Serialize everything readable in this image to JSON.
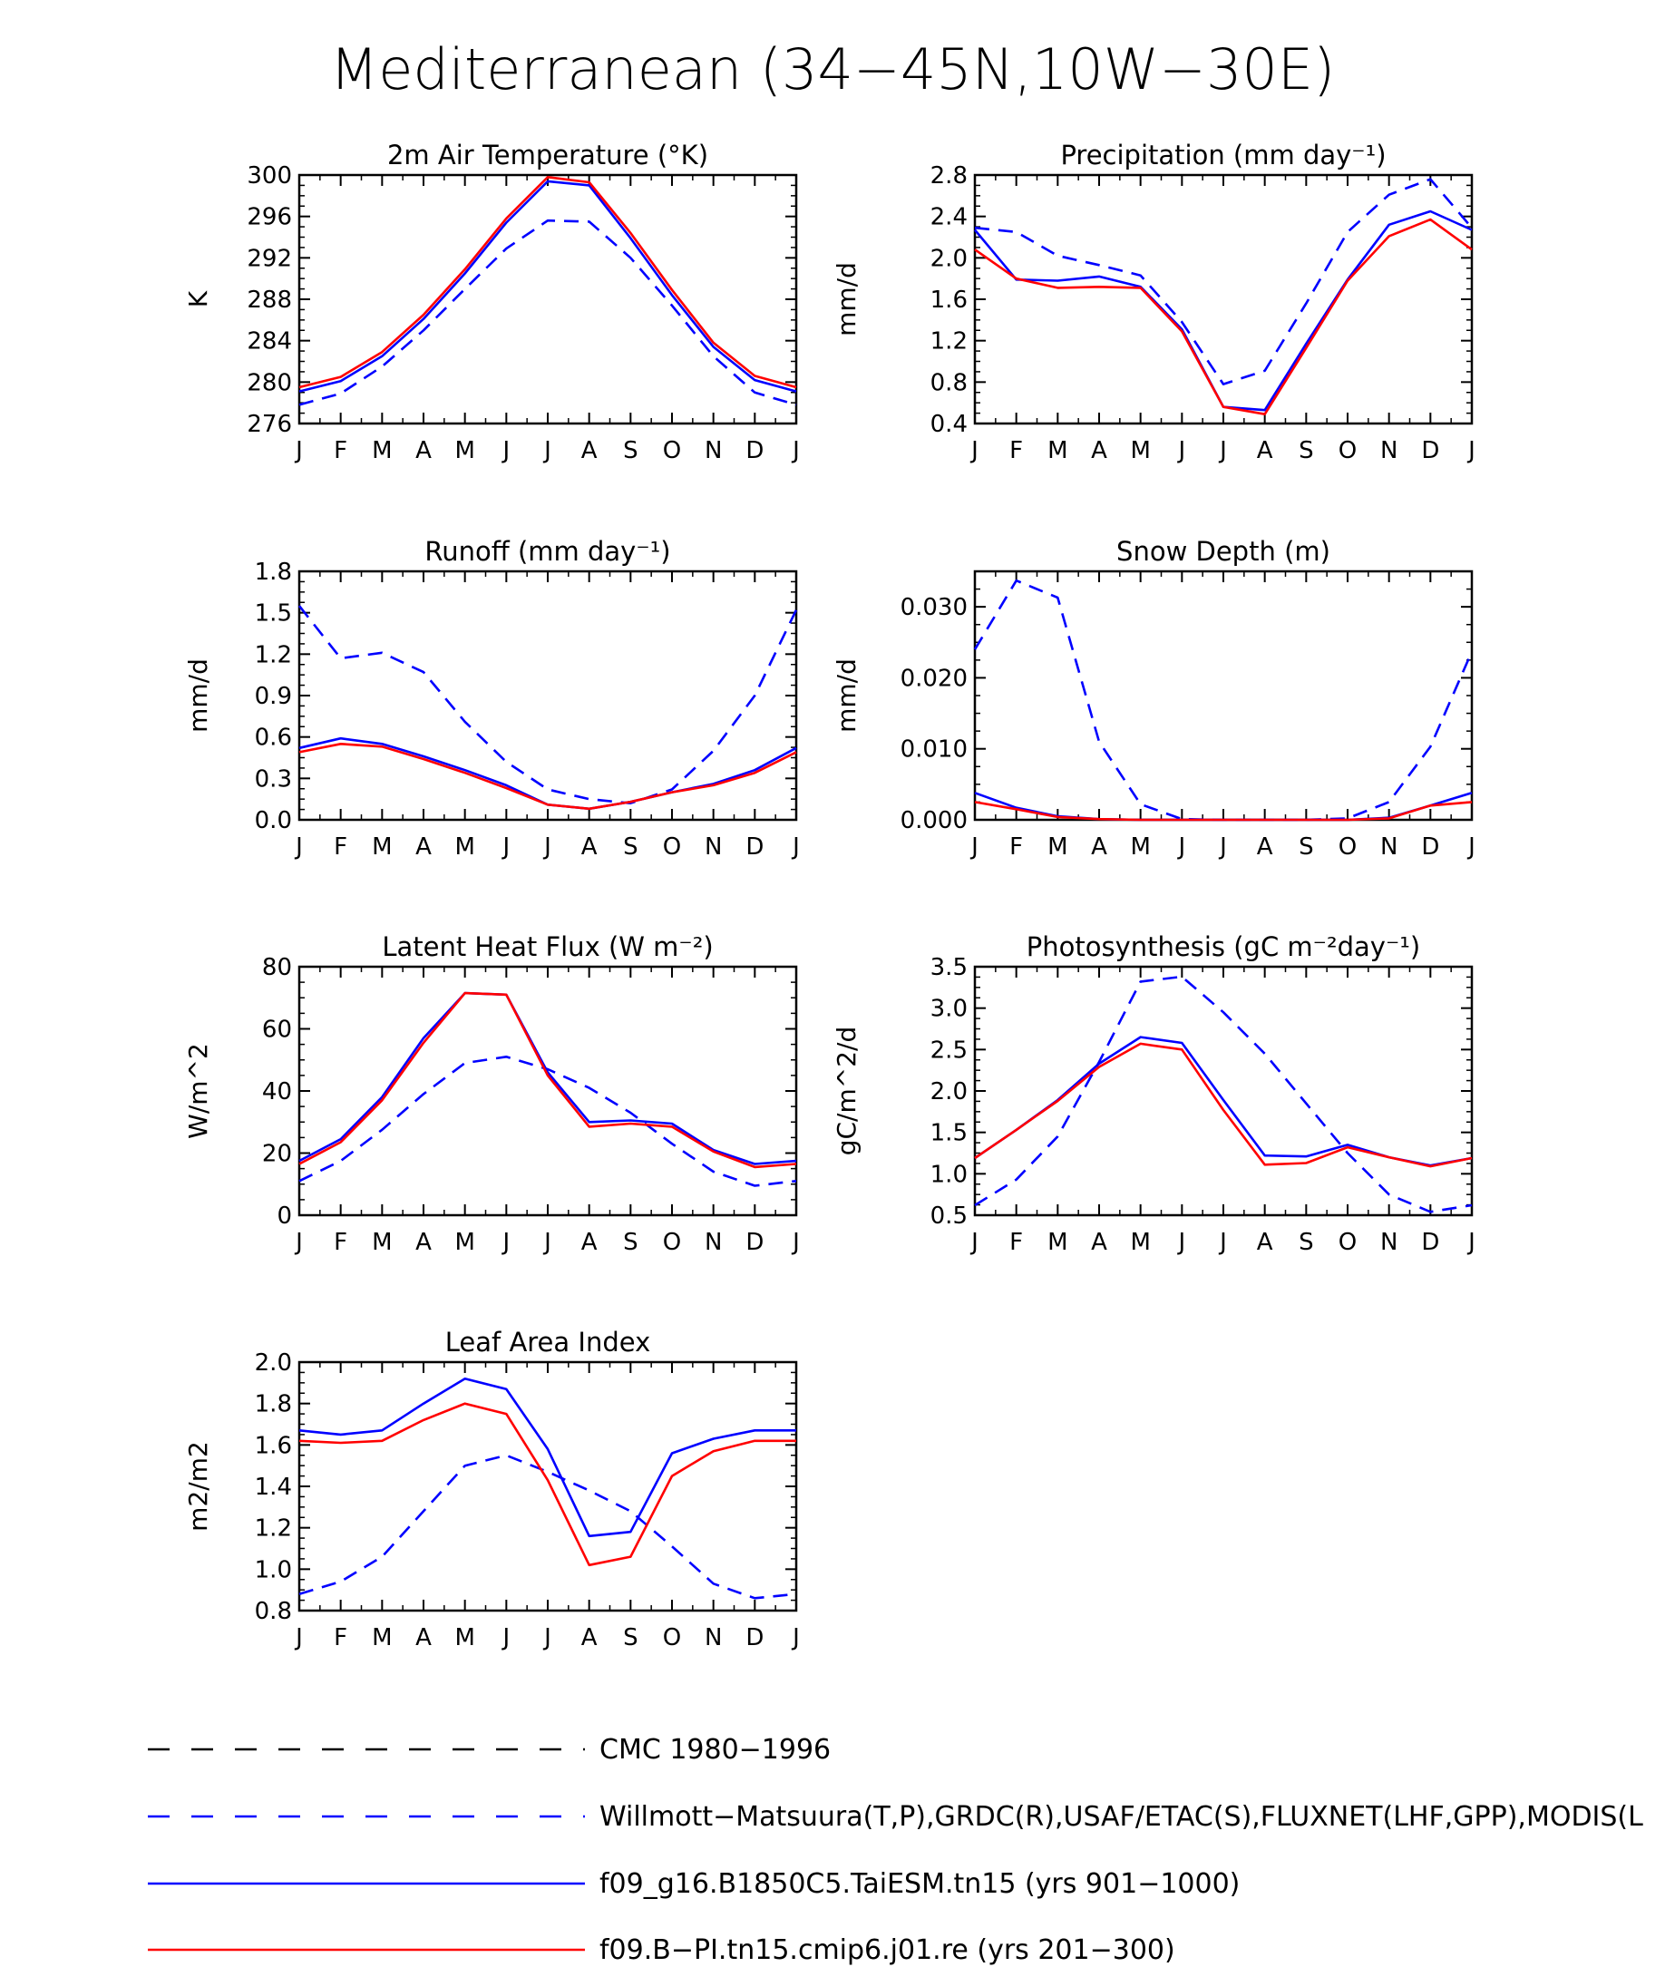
{
  "figure_title": "Mediterranean (34−45N,10W−30E)",
  "colors": {
    "obs_dashed": "#0000ff",
    "model_blue": "#0000ff",
    "model_red": "#ff0000",
    "reference_black": "#000000"
  },
  "chart_data": [
    {
      "type": "line",
      "title": "2m Air Temperature (°K)",
      "ylabel": "K",
      "categories": [
        "J",
        "F",
        "M",
        "A",
        "M",
        "J",
        "J",
        "A",
        "S",
        "O",
        "N",
        "D",
        "J"
      ],
      "ylim": [
        276,
        300
      ],
      "yticks": [
        "276",
        "280",
        "284",
        "288",
        "292",
        "296",
        "300"
      ],
      "series": [
        {
          "style": "dashed-blue",
          "values": [
            277.8,
            278.9,
            281.5,
            285.0,
            289.0,
            292.9,
            295.6,
            295.5,
            292.0,
            287.4,
            282.5,
            279.0,
            277.8
          ]
        },
        {
          "style": "solid-blue",
          "values": [
            279.1,
            280.1,
            282.5,
            286.1,
            290.5,
            295.4,
            299.4,
            299.0,
            293.9,
            288.4,
            283.4,
            280.2,
            279.1
          ]
        },
        {
          "style": "solid-red",
          "values": [
            279.5,
            280.5,
            282.9,
            286.5,
            290.9,
            295.8,
            299.8,
            299.3,
            294.4,
            288.9,
            283.8,
            280.6,
            279.5
          ]
        }
      ]
    },
    {
      "type": "line",
      "title": "Precipitation (mm day⁻¹)",
      "ylabel": "mm/d",
      "categories": [
        "J",
        "F",
        "M",
        "A",
        "M",
        "J",
        "J",
        "A",
        "S",
        "O",
        "N",
        "D",
        "J"
      ],
      "ylim": [
        0.4,
        2.8
      ],
      "yticks": [
        "0.4",
        "0.8",
        "1.2",
        "1.6",
        "2.0",
        "2.4",
        "2.8"
      ],
      "series": [
        {
          "style": "dashed-blue",
          "values": [
            2.29,
            2.25,
            2.02,
            1.93,
            1.83,
            1.38,
            0.78,
            0.91,
            1.56,
            2.25,
            2.61,
            2.76,
            2.29
          ]
        },
        {
          "style": "solid-blue",
          "values": [
            2.27,
            1.79,
            1.78,
            1.82,
            1.72,
            1.31,
            0.56,
            0.53,
            1.17,
            1.79,
            2.32,
            2.45,
            2.27
          ]
        },
        {
          "style": "solid-red",
          "values": [
            2.08,
            1.8,
            1.71,
            1.72,
            1.71,
            1.29,
            0.56,
            0.49,
            1.13,
            1.78,
            2.21,
            2.37,
            2.08
          ]
        }
      ]
    },
    {
      "type": "line",
      "title": "Runoff (mm day⁻¹)",
      "ylabel": "mm/d",
      "categories": [
        "J",
        "F",
        "M",
        "A",
        "M",
        "J",
        "J",
        "A",
        "S",
        "O",
        "N",
        "D",
        "J"
      ],
      "ylim": [
        0,
        1.8
      ],
      "yticks": [
        "0.0",
        "0.3",
        "0.6",
        "0.9",
        "1.2",
        "1.5",
        "1.8"
      ],
      "series": [
        {
          "style": "dashed-blue",
          "values": [
            1.55,
            1.17,
            1.21,
            1.07,
            0.71,
            0.42,
            0.22,
            0.15,
            0.12,
            0.22,
            0.5,
            0.9,
            1.52
          ]
        },
        {
          "style": "solid-blue",
          "values": [
            0.52,
            0.59,
            0.55,
            0.46,
            0.36,
            0.25,
            0.11,
            0.08,
            0.13,
            0.2,
            0.26,
            0.36,
            0.52
          ]
        },
        {
          "style": "solid-red",
          "values": [
            0.49,
            0.55,
            0.53,
            0.44,
            0.34,
            0.23,
            0.11,
            0.08,
            0.13,
            0.2,
            0.25,
            0.34,
            0.49
          ]
        }
      ]
    },
    {
      "type": "line",
      "title": "Snow Depth (m)",
      "ylabel": "mm/d",
      "categories": [
        "J",
        "F",
        "M",
        "A",
        "M",
        "J",
        "J",
        "A",
        "S",
        "O",
        "N",
        "D",
        "J"
      ],
      "ylim": [
        0,
        0.035
      ],
      "yticks": [
        "0.000",
        "0.010",
        "0.020",
        "0.030"
      ],
      "series": [
        {
          "style": "dashed-blue",
          "values": [
            0.024,
            0.0337,
            0.0313,
            0.011,
            0.0022,
            0.0001,
            0.0,
            0.0,
            0.0,
            0.0002,
            0.0025,
            0.0103,
            0.0237
          ]
        },
        {
          "style": "solid-blue",
          "values": [
            0.0038,
            0.0017,
            0.0005,
            0.0001,
            0.0,
            0.0,
            0.0,
            0.0,
            0.0,
            0.0,
            0.0003,
            0.002,
            0.0038
          ]
        },
        {
          "style": "solid-red",
          "values": [
            0.0025,
            0.0015,
            0.0004,
            0.0001,
            0.0,
            0.0,
            0.0,
            0.0,
            0.0,
            0.0,
            0.0002,
            0.002,
            0.0025
          ]
        }
      ]
    },
    {
      "type": "line",
      "title": "Latent Heat Flux (W m⁻²)",
      "ylabel": "W/m^2",
      "categories": [
        "J",
        "F",
        "M",
        "A",
        "M",
        "J",
        "J",
        "A",
        "S",
        "O",
        "N",
        "D",
        "J"
      ],
      "ylim": [
        0,
        80
      ],
      "yticks": [
        "0",
        "20",
        "40",
        "60",
        "80"
      ],
      "series": [
        {
          "style": "dashed-blue",
          "values": [
            11.0,
            17.5,
            27.5,
            39.0,
            49.0,
            51.0,
            47.0,
            41.0,
            33.0,
            23.0,
            14.0,
            9.5,
            11.0
          ]
        },
        {
          "style": "solid-blue",
          "values": [
            17.5,
            24.5,
            38.0,
            57.0,
            71.5,
            71.0,
            46.0,
            30.0,
            30.5,
            29.5,
            21.0,
            16.5,
            17.5
          ]
        },
        {
          "style": "solid-red",
          "values": [
            16.5,
            23.5,
            37.0,
            55.5,
            71.5,
            71.0,
            45.0,
            28.5,
            29.5,
            28.5,
            20.5,
            15.5,
            16.5
          ]
        }
      ]
    },
    {
      "type": "line",
      "title": "Photosynthesis (gC m⁻²day⁻¹)",
      "ylabel": "gC/m^2/d",
      "categories": [
        "J",
        "F",
        "M",
        "A",
        "M",
        "J",
        "J",
        "A",
        "S",
        "O",
        "N",
        "D",
        "J"
      ],
      "ylim": [
        0.5,
        3.5
      ],
      "yticks": [
        "0.5",
        "1.0",
        "1.5",
        "2.0",
        "2.5",
        "3.0",
        "3.5"
      ],
      "series": [
        {
          "style": "dashed-blue",
          "values": [
            0.62,
            0.93,
            1.45,
            2.35,
            3.32,
            3.38,
            2.95,
            2.45,
            1.85,
            1.25,
            0.75,
            0.54,
            0.62
          ]
        },
        {
          "style": "solid-blue",
          "values": [
            1.19,
            1.53,
            1.89,
            2.33,
            2.65,
            2.58,
            1.89,
            1.22,
            1.21,
            1.35,
            1.2,
            1.1,
            1.19
          ]
        },
        {
          "style": "solid-red",
          "values": [
            1.19,
            1.53,
            1.88,
            2.29,
            2.57,
            2.5,
            1.77,
            1.11,
            1.13,
            1.32,
            1.2,
            1.09,
            1.19
          ]
        }
      ]
    },
    {
      "type": "line",
      "title": "Leaf Area Index",
      "ylabel": "m2/m2",
      "categories": [
        "J",
        "F",
        "M",
        "A",
        "M",
        "J",
        "J",
        "A",
        "S",
        "O",
        "N",
        "D",
        "J"
      ],
      "ylim": [
        0.8,
        2.0
      ],
      "yticks": [
        "0.8",
        "1.0",
        "1.2",
        "1.4",
        "1.6",
        "1.8",
        "2.0"
      ],
      "series": [
        {
          "style": "dashed-blue",
          "values": [
            0.88,
            0.94,
            1.06,
            1.28,
            1.5,
            1.55,
            1.47,
            1.38,
            1.28,
            1.11,
            0.93,
            0.86,
            0.88
          ]
        },
        {
          "style": "solid-blue",
          "values": [
            1.67,
            1.65,
            1.67,
            1.8,
            1.92,
            1.87,
            1.58,
            1.16,
            1.18,
            1.56,
            1.63,
            1.67,
            1.67
          ]
        },
        {
          "style": "solid-red",
          "values": [
            1.62,
            1.61,
            1.62,
            1.72,
            1.8,
            1.75,
            1.43,
            1.02,
            1.06,
            1.45,
            1.57,
            1.62,
            1.62
          ]
        }
      ]
    }
  ],
  "legend": [
    {
      "label": "CMC 1980−1996",
      "style": "dashed-black"
    },
    {
      "label": "Willmott−Matsuura(T,P),GRDC(R),USAF/ETAC(S),FLUXNET(LHF,GPP),MODIS(L",
      "style": "dashed-blue"
    },
    {
      "label": "f09_g16.B1850C5.TaiESM.tn15 (yrs 901−1000)",
      "style": "solid-blue"
    },
    {
      "label": "f09.B−PI.tn15.cmip6.j01.re (yrs 201−300)",
      "style": "solid-red"
    }
  ]
}
